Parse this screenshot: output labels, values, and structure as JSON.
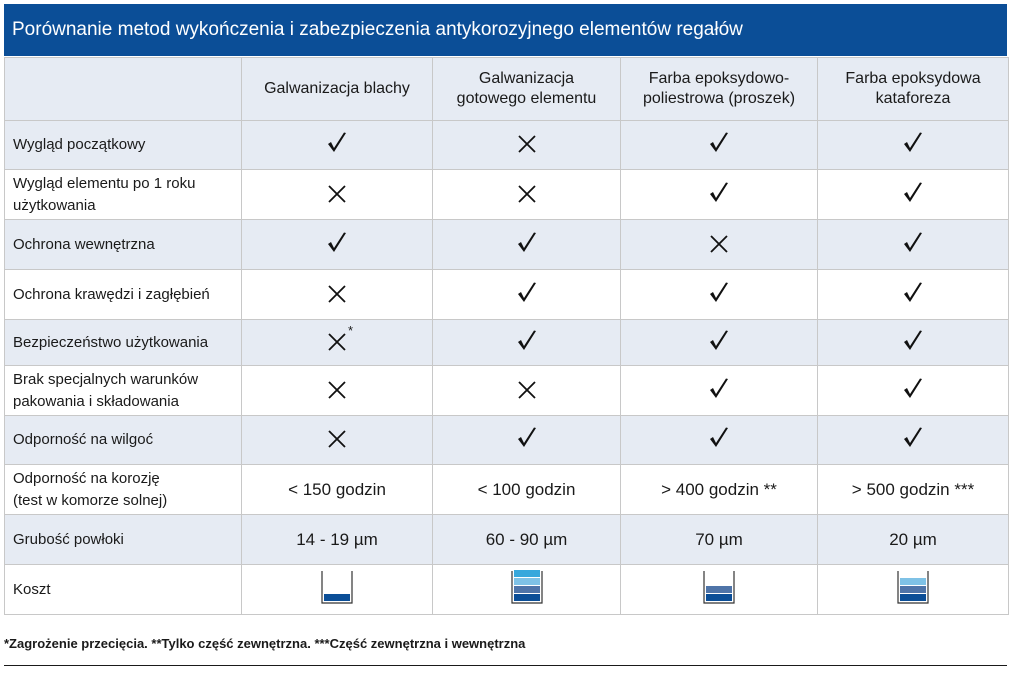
{
  "title": "Porównanie metod wykończenia i zabezpieczenia antykorozyjnego elementów regałów",
  "columns": [
    "Galwanizacja blachy",
    "Galwanizacja\ngotowego elementu",
    "Farba epoksydowo-\npoliestrowa (proszek)",
    "Farba epoksydowa\nkataforeza"
  ],
  "rows": [
    {
      "label": "Wygląd początkowy",
      "cells": [
        {
          "type": "check"
        },
        {
          "type": "cross"
        },
        {
          "type": "check"
        },
        {
          "type": "check"
        }
      ]
    },
    {
      "label": "Wygląd elementu po 1 roku\nużytkowania",
      "cells": [
        {
          "type": "cross"
        },
        {
          "type": "cross"
        },
        {
          "type": "check"
        },
        {
          "type": "check"
        }
      ]
    },
    {
      "label": "Ochrona wewnętrzna",
      "cells": [
        {
          "type": "check"
        },
        {
          "type": "check"
        },
        {
          "type": "cross"
        },
        {
          "type": "check"
        }
      ]
    },
    {
      "label": "Ochrona krawędzi i zagłębień",
      "cells": [
        {
          "type": "cross"
        },
        {
          "type": "check"
        },
        {
          "type": "check"
        },
        {
          "type": "check"
        }
      ]
    },
    {
      "label": "Bezpieczeństwo użytkowania",
      "cells": [
        {
          "type": "cross",
          "note": "*"
        },
        {
          "type": "check"
        },
        {
          "type": "check"
        },
        {
          "type": "check"
        }
      ]
    },
    {
      "label": "Brak specjalnych warunków\npakowania i składowania",
      "cells": [
        {
          "type": "cross"
        },
        {
          "type": "cross"
        },
        {
          "type": "check"
        },
        {
          "type": "check"
        }
      ]
    },
    {
      "label": "Odporność na wilgoć",
      "cells": [
        {
          "type": "cross"
        },
        {
          "type": "check"
        },
        {
          "type": "check"
        },
        {
          "type": "check"
        }
      ]
    },
    {
      "label": "Odporność na korozję\n(test w komorze solnej)",
      "cells": [
        {
          "type": "text",
          "text": "< 150 godzin"
        },
        {
          "type": "text",
          "text": "< 100 godzin"
        },
        {
          "type": "text",
          "text": "> 400 godzin **"
        },
        {
          "type": "text",
          "text": "> 500 godzin ***"
        }
      ]
    },
    {
      "label": "Grubość powłoki",
      "cells": [
        {
          "type": "text",
          "text": "14 - 19 µm"
        },
        {
          "type": "text",
          "text": "60 - 90 µm"
        },
        {
          "type": "text",
          "text": "70 µm"
        },
        {
          "type": "text",
          "text": "20 µm"
        }
      ]
    },
    {
      "label": "Koszt",
      "cells": [
        {
          "type": "cost",
          "level": 1
        },
        {
          "type": "cost",
          "level": 4
        },
        {
          "type": "cost",
          "level": 2
        },
        {
          "type": "cost",
          "level": 3
        }
      ]
    }
  ],
  "cost_colors": [
    "#0b4e97",
    "#4f74a8",
    "#7fc2e6",
    "#38a8dc"
  ],
  "footnote": "*Zagrożenie przecięcia.  **Tylko część zewnętrzna.  ***Część zewnętrzna i wewnętrzna"
}
